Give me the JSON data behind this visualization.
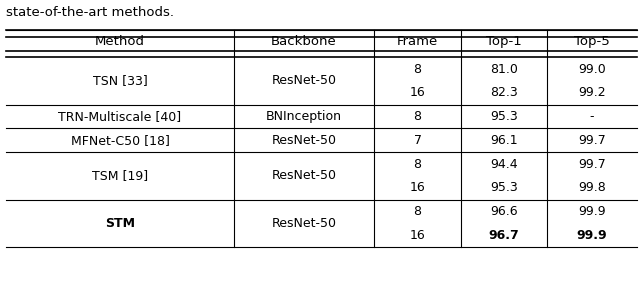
{
  "caption": "state-of-the-art methods.",
  "headers": [
    "Method",
    "Backbone",
    "Frame",
    "Top-1",
    "Top-5"
  ],
  "rows": [
    {
      "method": "TSN [33]",
      "method_bold": false,
      "backbone": "ResNet-50",
      "entries": [
        [
          "8",
          "81.0",
          "99.0"
        ],
        [
          "16",
          "82.3",
          "99.2"
        ]
      ],
      "bold_last": false
    },
    {
      "method": "TRN-Multiscale [40]",
      "method_bold": false,
      "backbone": "BNInception",
      "entries": [
        [
          "8",
          "95.3",
          "-"
        ]
      ],
      "bold_last": false
    },
    {
      "method": "MFNet-C50 [18]",
      "method_bold": false,
      "backbone": "ResNet-50",
      "entries": [
        [
          "7",
          "96.1",
          "99.7"
        ]
      ],
      "bold_last": false
    },
    {
      "method": "TSM [19]",
      "method_bold": false,
      "backbone": "ResNet-50",
      "entries": [
        [
          "8",
          "94.4",
          "99.7"
        ],
        [
          "16",
          "95.3",
          "99.8"
        ]
      ],
      "bold_last": false
    },
    {
      "method": "STM",
      "method_bold": true,
      "backbone": "ResNet-50",
      "entries": [
        [
          "8",
          "96.6",
          "99.9"
        ],
        [
          "16",
          "96.7",
          "99.9"
        ]
      ],
      "bold_last": true
    }
  ],
  "bg_color": "#ffffff",
  "text_color": "#000000",
  "header_fontsize": 9.5,
  "body_fontsize": 9.0,
  "caption_fontsize": 9.5
}
